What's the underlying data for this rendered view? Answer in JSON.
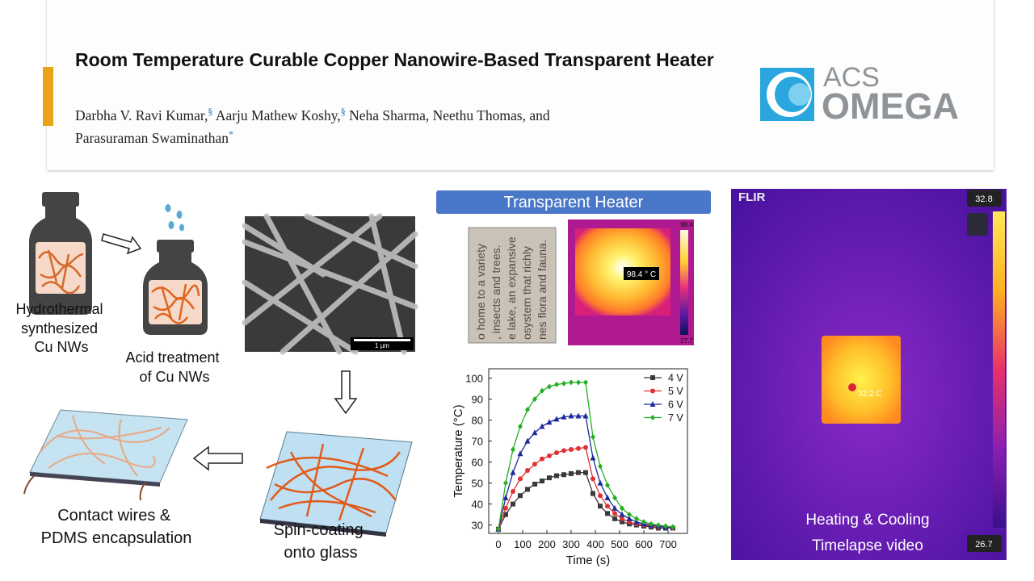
{
  "header": {
    "title": "Room Temperature Curable Copper Nanowire-Based Transparent Heater",
    "authors": [
      {
        "name": "Darbha V. Ravi Kumar,",
        "mark": "§"
      },
      {
        "name": "Aarju Mathew Koshy,",
        "mark": "§"
      },
      {
        "name": "Neha Sharma,"
      },
      {
        "name": "Neethu Thomas,"
      },
      {
        "name": "and Parasuraman Swaminathan",
        "mark": "*"
      }
    ],
    "logo": {
      "top": "ACS",
      "bottom": "OMEGA"
    }
  },
  "process": {
    "step1": [
      "Hydrothermal",
      "synthesized",
      "Cu NWs"
    ],
    "step2": [
      "Acid treatment",
      "of Cu NWs"
    ],
    "scale_bar": "1 µm",
    "step3": [
      "Spin-coating",
      "onto glass"
    ],
    "step4": [
      "Contact wires &",
      "PDMS encapsulation"
    ]
  },
  "heater": {
    "banner": "Transparent Heater",
    "photo_text": [
      "o home to a variety",
      ", insects and trees.",
      "e lake, an expansive",
      "osystem that richly",
      "nes flora and fauna."
    ],
    "spot_label": "98.4 ° C",
    "scale_max": "98.4",
    "scale_min": "27.7"
  },
  "flir": {
    "brand": "FLIR",
    "scale_max": "32.8",
    "scale_min": "26.7",
    "spot_label": "32.2 C",
    "caption": [
      "Heating & Cooling",
      "Timelapse video"
    ]
  },
  "chart_data": {
    "type": "line",
    "x_label": "Time (s)",
    "y_label": "Temperature (°C)",
    "x": [
      0,
      30,
      60,
      90,
      120,
      150,
      180,
      210,
      240,
      270,
      300,
      330,
      360,
      390,
      420,
      450,
      480,
      510,
      540,
      570,
      600,
      630,
      660,
      690,
      720
    ],
    "series": [
      {
        "name": "4 V",
        "color": "#3a3a3a",
        "marker": "square",
        "values": [
          28,
          35,
          40,
          44,
          47,
          49.5,
          51,
          52.5,
          53.5,
          54,
          54.5,
          55,
          55,
          45,
          39,
          35.5,
          33,
          31.5,
          30.5,
          30,
          29.5,
          29,
          28.5,
          28.5,
          28.5
        ]
      },
      {
        "name": "5 V",
        "color": "#e03232",
        "marker": "circle",
        "values": [
          28,
          38,
          46,
          52,
          56,
          59,
          61.5,
          63,
          64.5,
          65.5,
          66,
          66.5,
          67,
          52,
          44,
          39,
          35.5,
          33,
          31.5,
          30.5,
          30,
          29.5,
          29,
          29,
          28.5
        ]
      },
      {
        "name": "6 V",
        "color": "#1c2a9c",
        "marker": "triangle",
        "values": [
          28,
          43,
          55,
          64,
          70,
          74,
          77,
          79,
          80.5,
          81.5,
          82,
          82,
          82,
          62,
          50,
          43,
          38,
          35,
          33,
          31.5,
          30.5,
          30,
          29.5,
          29,
          29
        ]
      },
      {
        "name": "7 V",
        "color": "#22b022",
        "marker": "diamond",
        "values": [
          28,
          50,
          66,
          77,
          85,
          90,
          94,
          96,
          97,
          97.5,
          98,
          98,
          98,
          72,
          58,
          49,
          43,
          38,
          35,
          33,
          31.5,
          30.5,
          30,
          29.5,
          29
        ]
      }
    ],
    "xlim": [
      -40,
      780
    ],
    "ylim": [
      26,
      104.5
    ],
    "xticks": [
      0,
      100,
      200,
      300,
      400,
      500,
      600,
      700
    ],
    "yticks": [
      30,
      40,
      50,
      60,
      70,
      80,
      90,
      100
    ],
    "legend": "top-right"
  }
}
